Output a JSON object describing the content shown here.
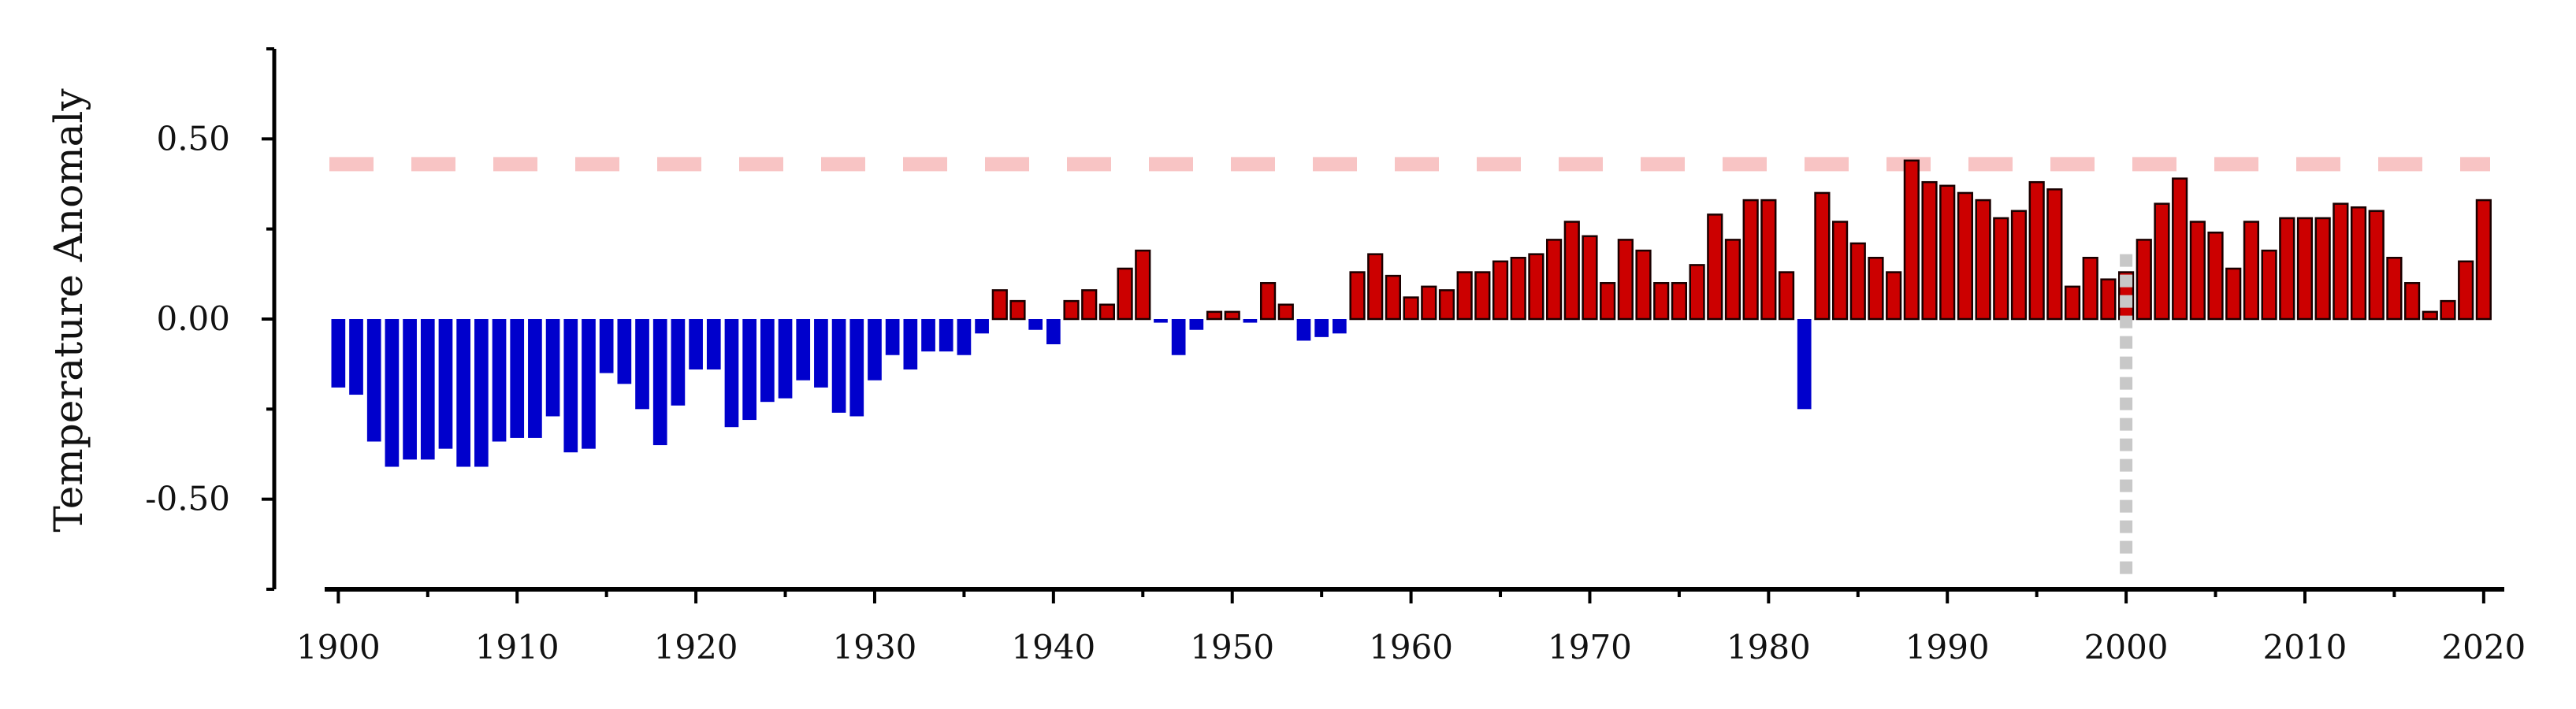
{
  "chart_data": {
    "type": "bar",
    "title": "",
    "xlabel": "",
    "ylabel": "Temperature Anomaly",
    "xlim": [
      1899.5,
      2020.8
    ],
    "ylim": [
      -0.75,
      0.75
    ],
    "x_ticks": [
      1900,
      1910,
      1920,
      1930,
      1940,
      1950,
      1960,
      1970,
      1980,
      1990,
      2000,
      2010,
      2020
    ],
    "x_tick_labels": [
      "1900",
      "1910",
      "1920",
      "1930",
      "1940",
      "1950",
      "1960",
      "1970",
      "1980",
      "1990",
      "2000",
      "2010",
      "2020"
    ],
    "y_ticks": [
      0.5,
      0.0,
      -0.5
    ],
    "y_tick_labels": [
      "0.50",
      "0.00",
      "-0.50"
    ],
    "grid": false,
    "legend": "none",
    "positive_color": "#cc0000",
    "negative_color": "#0000cc",
    "reference_line": {
      "value": 0.43,
      "color": "#f8c4c4",
      "style": "dashed"
    },
    "vertical_marker": {
      "x": 2000,
      "color": "#c8c8c8",
      "style": "dotted"
    },
    "years": [
      1900,
      1901,
      1902,
      1903,
      1904,
      1905,
      1906,
      1907,
      1908,
      1909,
      1910,
      1911,
      1912,
      1913,
      1914,
      1915,
      1916,
      1917,
      1918,
      1919,
      1920,
      1921,
      1922,
      1923,
      1924,
      1925,
      1926,
      1927,
      1928,
      1929,
      1930,
      1931,
      1932,
      1933,
      1934,
      1935,
      1936,
      1937,
      1938,
      1939,
      1940,
      1941,
      1942,
      1943,
      1944,
      1945,
      1946,
      1947,
      1948,
      1949,
      1950,
      1951,
      1952,
      1953,
      1954,
      1955,
      1956,
      1957,
      1958,
      1959,
      1960,
      1961,
      1962,
      1963,
      1964,
      1965,
      1966,
      1967,
      1968,
      1969,
      1970,
      1971,
      1972,
      1973,
      1974,
      1975,
      1976,
      1977,
      1978,
      1979,
      1980,
      1981,
      1982,
      1983,
      1984,
      1985,
      1986,
      1987,
      1988,
      1989,
      1990,
      1991,
      1992,
      1993,
      1994,
      1995,
      1996,
      1997,
      1998,
      1999,
      2000,
      2001,
      2002,
      2003,
      2004,
      2005,
      2006,
      2007,
      2008,
      2009,
      2010,
      2011,
      2012,
      2013,
      2014,
      2015,
      2016,
      2017,
      2018,
      2019,
      2020
    ],
    "values": [
      -0.19,
      -0.21,
      -0.34,
      -0.41,
      -0.39,
      -0.39,
      -0.36,
      -0.41,
      -0.41,
      -0.34,
      -0.33,
      -0.33,
      -0.27,
      -0.37,
      -0.36,
      -0.15,
      -0.18,
      -0.25,
      -0.35,
      -0.24,
      -0.14,
      -0.14,
      -0.3,
      -0.28,
      -0.23,
      -0.22,
      -0.17,
      -0.19,
      -0.26,
      -0.27,
      -0.17,
      -0.1,
      -0.14,
      -0.09,
      -0.09,
      -0.1,
      -0.04,
      0.08,
      0.05,
      -0.03,
      -0.07,
      0.05,
      0.08,
      0.04,
      0.14,
      0.19,
      -0.01,
      -0.1,
      -0.03,
      0.02,
      0.02,
      -0.01,
      0.1,
      0.04,
      -0.06,
      -0.05,
      -0.04,
      0.13,
      0.18,
      0.12,
      0.06,
      0.09,
      0.08,
      0.13,
      0.13,
      0.16,
      0.17,
      0.18,
      0.22,
      0.27,
      0.23,
      0.1,
      0.22,
      0.19,
      0.1,
      0.1,
      0.15,
      0.29,
      0.22,
      0.33,
      0.33,
      0.13,
      -0.25,
      0.35,
      0.27,
      0.21,
      0.17,
      0.13,
      0.44,
      0.38,
      0.37,
      0.35,
      0.33,
      0.28,
      0.3,
      0.38,
      0.36,
      0.09,
      0.17,
      0.11,
      0.13,
      0.22,
      0.32,
      0.39,
      0.27,
      0.24,
      0.14,
      0.27,
      0.19,
      0.28,
      0.28,
      0.28,
      0.32,
      0.31,
      0.3,
      0.17,
      0.1,
      0.02,
      0.05,
      0.16,
      0.33
    ]
  }
}
